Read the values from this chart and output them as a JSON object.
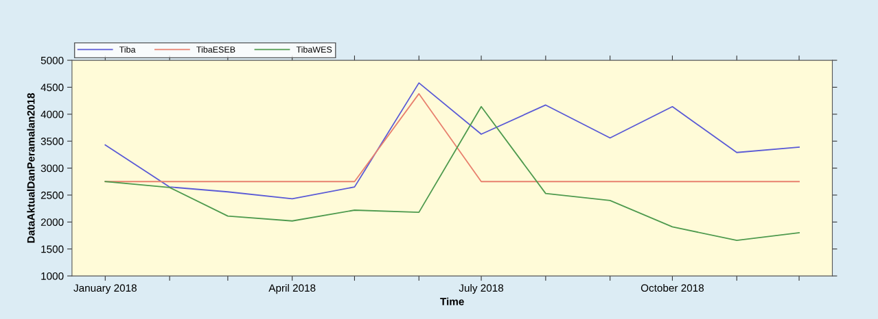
{
  "chart_data": {
    "type": "line",
    "xlabel": "Time",
    "ylabel": "DataAktualDanPeramalan2018",
    "x": [
      "2018-01",
      "2018-02",
      "2018-03",
      "2018-04",
      "2018-05",
      "2018-06",
      "2018-07",
      "2018-08",
      "2018-09",
      "2018-10",
      "2018-11",
      "2018-12"
    ],
    "series": [
      {
        "name": "Tiba",
        "color": "#5a5ad6",
        "values": [
          3430,
          2650,
          2560,
          2430,
          2650,
          4580,
          3630,
          4170,
          3560,
          4140,
          3290,
          3390
        ]
      },
      {
        "name": "TibaESEB",
        "color": "#e8806e",
        "values": [
          2750,
          2750,
          2750,
          2750,
          2750,
          4380,
          2750,
          2750,
          2750,
          2750,
          2750,
          2750
        ]
      },
      {
        "name": "TibaWES",
        "color": "#4e9a4e",
        "values": [
          2750,
          2640,
          2110,
          2020,
          2220,
          2180,
          4140,
          2530,
          2400,
          1910,
          1660,
          1800
        ]
      }
    ],
    "xlim": [
      "2017-12-16",
      "2018-12-17"
    ],
    "xticks": [
      {
        "value": "2018-01",
        "label": "January 2018"
      },
      {
        "value": "2018-02",
        "label": null
      },
      {
        "value": "2018-03",
        "label": null
      },
      {
        "value": "2018-04",
        "label": "April 2018"
      },
      {
        "value": "2018-05",
        "label": null
      },
      {
        "value": "2018-06",
        "label": null
      },
      {
        "value": "2018-07",
        "label": "July 2018"
      },
      {
        "value": "2018-08",
        "label": null
      },
      {
        "value": "2018-09",
        "label": null
      },
      {
        "value": "2018-10",
        "label": "October 2018"
      },
      {
        "value": "2018-11",
        "label": null
      },
      {
        "value": "2018-12",
        "label": null
      }
    ],
    "ylim": [
      1000,
      5000
    ],
    "yticks": [
      1000,
      1500,
      2000,
      2500,
      3000,
      3500,
      4000,
      4500,
      5000
    ],
    "legend": "top left",
    "grid": false,
    "marker": "none",
    "line_style": "solid"
  }
}
